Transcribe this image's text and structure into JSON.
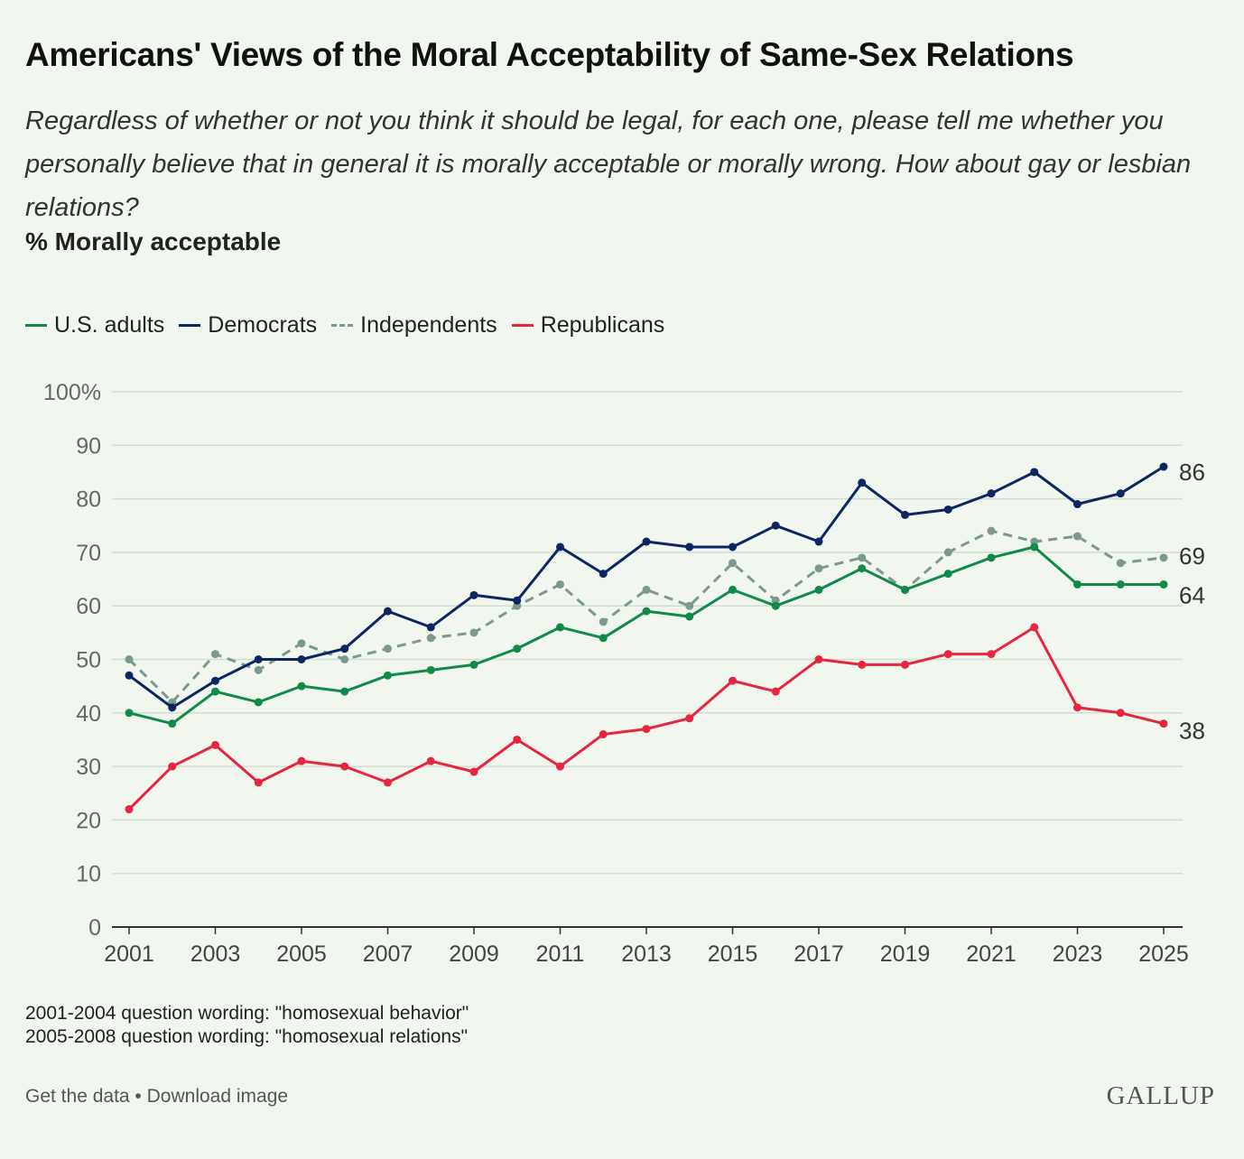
{
  "title": "Americans' Views of the Moral Acceptability of Same-Sex Relations",
  "subtitle": "Regardless of whether or not you think it should be legal, for each one, please tell me whether you personally believe that in general it is morally acceptable or morally wrong. How about gay or lesbian relations?",
  "measure": "% Morally acceptable",
  "notes": [
    "2001-2004 question wording: \"homosexual behavior\"",
    "2005-2008 question wording: \"homosexual relations\""
  ],
  "footer": {
    "get_data": "Get the data",
    "separator": " • ",
    "download": "Download image",
    "brand": "GALLUP"
  },
  "chart_data": {
    "type": "line",
    "title": "Americans' Views of the Moral Acceptability of Same-Sex Relations",
    "xlabel": "",
    "ylabel": "% Morally acceptable",
    "x": [
      2001,
      2002,
      2003,
      2004,
      2005,
      2006,
      2007,
      2008,
      2009,
      2010,
      2011,
      2012,
      2013,
      2014,
      2015,
      2016,
      2017,
      2018,
      2019,
      2020,
      2021,
      2022,
      2023,
      2024,
      2025
    ],
    "x_ticks": [
      2001,
      2003,
      2005,
      2007,
      2009,
      2011,
      2013,
      2015,
      2017,
      2019,
      2021,
      2023,
      2025
    ],
    "ylim": [
      0,
      100
    ],
    "y_ticks": [
      0,
      10,
      20,
      30,
      40,
      50,
      60,
      70,
      80,
      90,
      100
    ],
    "y_tick_labels": [
      "0",
      "10",
      "20",
      "30",
      "40",
      "50",
      "60",
      "70",
      "80",
      "90",
      "100%"
    ],
    "grid": true,
    "legend_position": "top-left",
    "series": [
      {
        "name": "U.S. adults",
        "color": "#0f8a47",
        "dashed": false,
        "end_label": "64",
        "values": [
          40,
          38,
          44,
          42,
          45,
          44,
          47,
          48,
          49,
          52,
          56,
          54,
          59,
          58,
          63,
          60,
          63,
          67,
          63,
          66,
          69,
          71,
          64,
          64,
          64
        ]
      },
      {
        "name": "Democrats",
        "color": "#0b2663",
        "dashed": false,
        "end_label": "86",
        "values": [
          47,
          41,
          46,
          50,
          50,
          52,
          59,
          56,
          62,
          61,
          71,
          66,
          72,
          71,
          71,
          75,
          72,
          83,
          77,
          78,
          81,
          85,
          79,
          81,
          86
        ]
      },
      {
        "name": "Independents",
        "color": "#7b9990",
        "dashed": true,
        "end_label": "69",
        "values": [
          50,
          42,
          51,
          48,
          53,
          50,
          52,
          54,
          55,
          60,
          64,
          57,
          63,
          60,
          68,
          61,
          67,
          69,
          63,
          70,
          74,
          72,
          73,
          68,
          69
        ]
      },
      {
        "name": "Republicans",
        "color": "#e8253f",
        "dashed": false,
        "end_label": "38",
        "values": [
          22,
          30,
          34,
          27,
          31,
          30,
          27,
          31,
          29,
          35,
          30,
          36,
          37,
          39,
          46,
          44,
          50,
          49,
          49,
          51,
          51,
          56,
          41,
          40,
          38
        ]
      }
    ]
  }
}
